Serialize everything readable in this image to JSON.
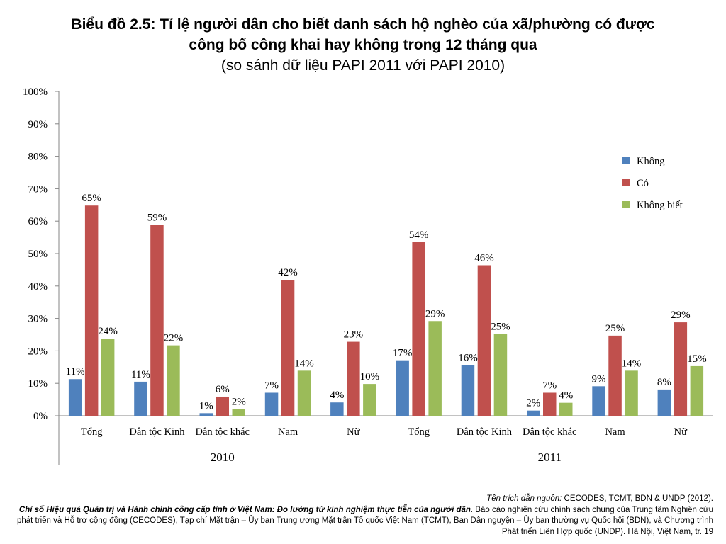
{
  "title": {
    "line1": "Biểu đồ 2.5: Tỉ lệ người dân cho biết danh sách hộ nghèo của xã/phường có được",
    "line2": "công bố công khai hay không trong 12 tháng qua",
    "line3": "(so sánh dữ liệu PAPI 2011 với PAPI 2010)"
  },
  "source": {
    "lead": "Tên trích dẫn nguồn:",
    "lead_rest": " CECODES, TCMT, BDN & UNDP (2012).",
    "bold": "Chỉ số Hiệu quả Quản trị và Hành chính công cấp tỉnh ở Việt Nam: Đo lường từ kinh nghiệm thực tiễn của người dân.",
    "rest": " Báo cáo nghiên cứu chính sách chung của Trung tâm Nghiên cứu phát triển và Hỗ trợ cộng đồng (CECODES), Tạp chí Mặt trận – Ủy ban Trung ương Mặt trận Tổ quốc Việt Nam (TCMT), Ban Dân nguyện – Ủy ban thường vụ Quốc hội (BDN), và Chương trình Phát triển Liên Hợp quốc (UNDP). Hà Nội, Việt Nam, tr. 19"
  },
  "chart_data": {
    "type": "bar",
    "ylim": [
      0,
      100
    ],
    "yticks": [
      0,
      10,
      20,
      30,
      40,
      50,
      60,
      70,
      80,
      90,
      100
    ],
    "ytick_suffix": "%",
    "legend_position": "right",
    "grid": false,
    "groups": [
      {
        "label": "2010",
        "categories": [
          "Tổng",
          "Dân tộc Kinh",
          "Dân tộc khác",
          "Nam",
          "Nữ"
        ]
      },
      {
        "label": "2011",
        "categories": [
          "Tổng",
          "Dân tộc Kinh",
          "Dân tộc khác",
          "Nam",
          "Nữ"
        ]
      }
    ],
    "series": [
      {
        "name": "Không",
        "color": "#4F81BD",
        "values": [
          11.3,
          10.5,
          0.8,
          7.1,
          4.1,
          17.1,
          15.6,
          1.6,
          9.1,
          8.1
        ],
        "labels": [
          "11%",
          "11%",
          "1%",
          "7%",
          "4%",
          "17%",
          "16%",
          "2%",
          "9%",
          "8%"
        ]
      },
      {
        "name": "Có",
        "color": "#C0504D",
        "values": [
          64.8,
          58.8,
          5.9,
          41.9,
          22.8,
          53.5,
          46.4,
          7.1,
          24.7,
          28.8
        ],
        "labels": [
          "65%",
          "59%",
          "6%",
          "42%",
          "23%",
          "54%",
          "46%",
          "7%",
          "25%",
          "29%"
        ]
      },
      {
        "name": "Không biết",
        "color": "#9BBB59",
        "values": [
          23.8,
          21.7,
          2.1,
          13.9,
          9.8,
          29.2,
          25.2,
          4.0,
          13.9,
          15.3
        ],
        "labels": [
          "24%",
          "22%",
          "2%",
          "14%",
          "10%",
          "29%",
          "25%",
          "4%",
          "14%",
          "15%"
        ]
      }
    ]
  }
}
